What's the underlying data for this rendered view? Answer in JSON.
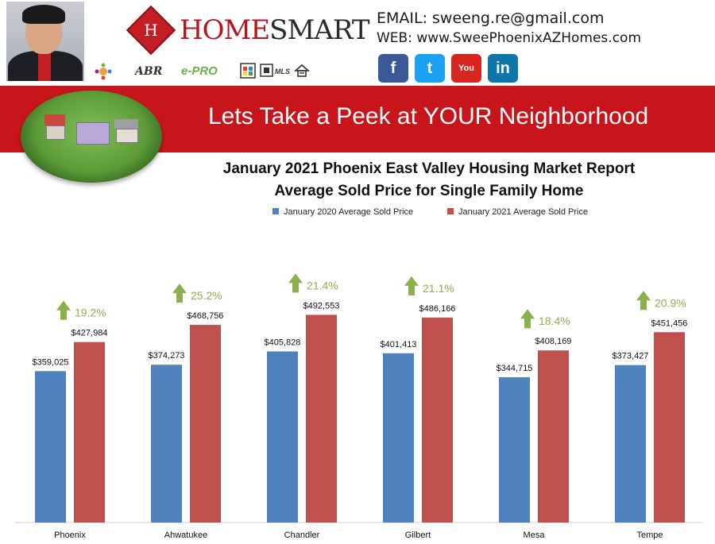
{
  "header": {
    "brand_first": "HOME",
    "brand_second": "SMART",
    "logo_letter": "H",
    "email": "EMAIL: sweeng.re@gmail.com",
    "web": "WEB: www.SweePhoenixAZHomes.com",
    "badges": [
      "ABR",
      "e-PRO",
      "MLS"
    ],
    "social": [
      {
        "name": "facebook",
        "glyph": "f",
        "color": "#3b5998"
      },
      {
        "name": "twitter",
        "glyph": "t",
        "color": "#1da1f2"
      },
      {
        "name": "youtube",
        "glyph": "You",
        "color": "#d6261f"
      },
      {
        "name": "linkedin",
        "glyph": "in",
        "color": "#0e76a8"
      }
    ]
  },
  "banner": {
    "text": "Lets Take a Peek at YOUR Neighborhood"
  },
  "chart_data": {
    "type": "bar",
    "title": "January 2021 Phoenix East Valley Housing Market Report",
    "subtitle": "Average Sold Price for Single Family Home",
    "categories": [
      "Phoenix",
      "Ahwatukee",
      "Chandler",
      "Gilbert",
      "Mesa",
      "Tempe"
    ],
    "series": [
      {
        "name": "January 2020 Average Sold Price",
        "color": "#4f81bd",
        "values": [
          359025,
          374273,
          405828,
          401413,
          344715,
          373427
        ],
        "labels": [
          "$359,025",
          "$374,273",
          "$405,828",
          "$401,413",
          "$344,715",
          "$373,427"
        ]
      },
      {
        "name": "January 2021 Average Sold Price",
        "color": "#c0504d",
        "values": [
          427984,
          468756,
          492553,
          486166,
          408169,
          451456
        ],
        "labels": [
          "$427,984",
          "$468,756",
          "$492,553",
          "$486,166",
          "$408,169",
          "$451,456"
        ]
      }
    ],
    "change_labels": [
      "19.2%",
      "25.2%",
      "21.4%",
      "21.1%",
      "18.4%",
      "20.9%"
    ],
    "change_color": "#8db04f",
    "ylim": [
      0,
      580000
    ],
    "grid": false,
    "legend": "top"
  }
}
